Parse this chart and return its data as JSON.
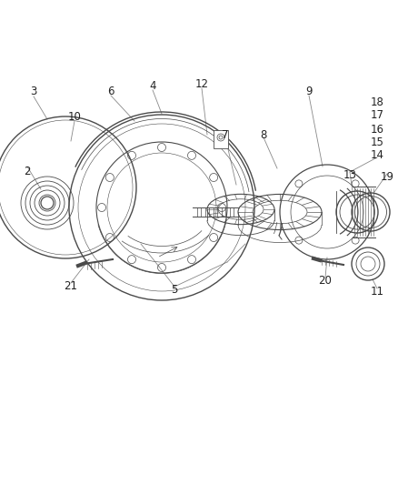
{
  "background_color": "#ffffff",
  "line_color": "#4a4a4a",
  "light_line": "#888888",
  "text_color": "#222222",
  "label_fontsize": 8.5,
  "figsize": [
    4.38,
    5.33
  ],
  "dpi": 100
}
